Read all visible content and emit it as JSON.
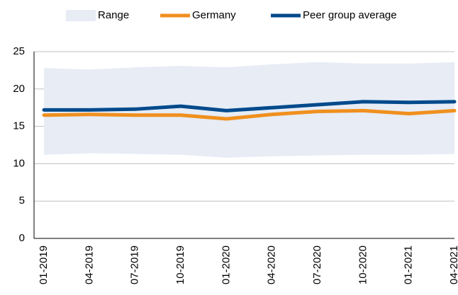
{
  "chart_data": {
    "type": "line",
    "categories": [
      "01-2019",
      "04-2019",
      "07-2019",
      "10-2019",
      "01-2020",
      "04-2020",
      "07-2020",
      "10-2020",
      "01-2021",
      "04-2021"
    ],
    "series": [
      {
        "name": "Range",
        "color": "#e7ecf5",
        "low": [
          11.2,
          11.4,
          11.3,
          11.2,
          10.8,
          11.0,
          11.1,
          11.2,
          11.2,
          11.3
        ],
        "high": [
          22.8,
          22.6,
          22.9,
          23.1,
          22.9,
          23.3,
          23.6,
          23.4,
          23.4,
          23.6
        ]
      },
      {
        "name": "Germany",
        "color": "#f0901e",
        "values": [
          16.5,
          16.6,
          16.5,
          16.5,
          16.0,
          16.6,
          17.0,
          17.1,
          16.7,
          17.1
        ]
      },
      {
        "name": "Peer group average",
        "color": "#004a8c",
        "values": [
          17.2,
          17.2,
          17.3,
          17.7,
          17.1,
          17.5,
          17.9,
          18.3,
          18.2,
          18.3
        ]
      }
    ],
    "ylim": [
      0,
      25
    ],
    "yticks": [
      0,
      5,
      10,
      15,
      20,
      25
    ],
    "grid": true
  }
}
